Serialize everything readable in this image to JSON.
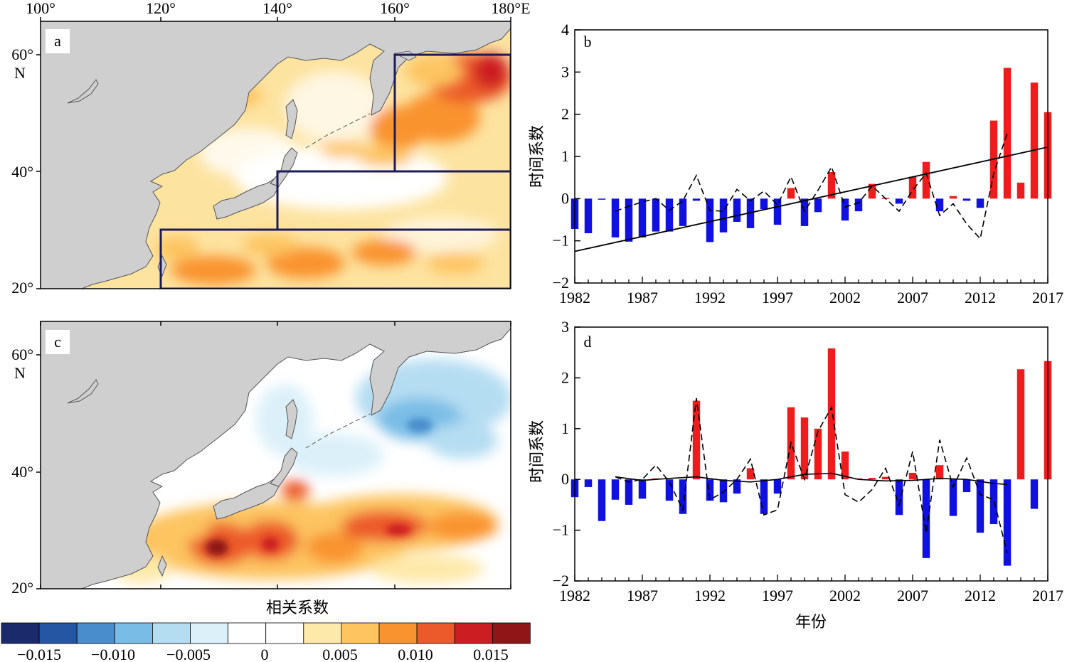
{
  "figure": {
    "colorbar_title": "相关系数",
    "colorbar_tick_labels": [
      "−0.015",
      "−0.010",
      "−0.005",
      "0",
      "0.005",
      "0.010",
      "0.015"
    ],
    "colorbar_colors": [
      "#1b2a6a",
      "#2456a4",
      "#4a8dcd",
      "#79bde6",
      "#b5ddf2",
      "#dcf0f9",
      "#ffffff",
      "#ffffff",
      "#fde9a9",
      "#fdc460",
      "#f9932f",
      "#ec5a2b",
      "#cc1d22",
      "#8f1517"
    ]
  },
  "maps": [
    {
      "panel": "a",
      "lon_labels": [
        "100°",
        "120°",
        "140°",
        "160°",
        "180°E"
      ],
      "lat_labels": [
        "60°",
        "N",
        "40°",
        "20°"
      ],
      "land_color": "#cfcfcf",
      "boxes": [
        "160°E–180°, 40°–60°N",
        "140°E–180°, 30°–40°N",
        "120°E–180°, 20°–30°N"
      ],
      "pattern": "positive"
    },
    {
      "panel": "c",
      "lon_labels": [],
      "lat_labels": [
        "60°",
        "N",
        "40°",
        "20°"
      ],
      "land_color": "#cfcfcf",
      "pattern": "mixed"
    }
  ],
  "chart_data": [
    {
      "type": "bar",
      "panel": "b",
      "ylabel": "时间系数",
      "xlabel": "",
      "ylim": [
        -2,
        4
      ],
      "yticks": [
        "4",
        "3",
        "2",
        "1",
        "0",
        "−1",
        "−2"
      ],
      "xticks": [
        "1982",
        "1987",
        "1992",
        "1997",
        "2002",
        "2007",
        "2012",
        "2017"
      ],
      "x": [
        1982,
        1983,
        1984,
        1985,
        1986,
        1987,
        1988,
        1989,
        1990,
        1991,
        1992,
        1993,
        1994,
        1995,
        1996,
        1997,
        1998,
        1999,
        2000,
        2001,
        2002,
        2003,
        2004,
        2005,
        2006,
        2007,
        2008,
        2009,
        2010,
        2011,
        2012,
        2013,
        2014,
        2015,
        2016,
        2017
      ],
      "values": [
        -0.72,
        -0.82,
        -0.02,
        -0.92,
        -1.02,
        -0.92,
        -0.78,
        -0.78,
        -0.65,
        -0.05,
        -1.03,
        -0.8,
        -0.55,
        -0.7,
        -0.25,
        -0.62,
        0.25,
        -0.65,
        -0.32,
        0.63,
        -0.52,
        -0.3,
        0.35,
        0.02,
        -0.12,
        0.52,
        0.87,
        -0.3,
        0.06,
        -0.05,
        -0.22,
        1.85,
        3.1,
        0.38,
        2.75,
        2.05
      ],
      "positive_color": "#ee1c1c",
      "negative_color": "#1010e0",
      "dashed_line": {
        "x": [
          1985,
          1986,
          1987,
          1988,
          1989,
          1990,
          1991,
          1992,
          1993,
          1994,
          1995,
          1996,
          1997,
          1998,
          1999,
          2000,
          2001,
          2002,
          2003,
          2004,
          2005,
          2006,
          2007,
          2008,
          2009,
          2010,
          2011,
          2012,
          2013,
          2014
        ],
        "y": [
          -0.3,
          -0.18,
          -0.08,
          0.0,
          -0.28,
          -0.05,
          0.55,
          -0.28,
          -0.3,
          0.22,
          -0.05,
          0.18,
          -0.15,
          0.52,
          -0.3,
          0.2,
          0.75,
          -0.2,
          -0.1,
          0.3,
          0.0,
          -0.3,
          0.2,
          0.6,
          -0.4,
          -0.12,
          -0.6,
          -0.95,
          0.6,
          1.55
        ]
      },
      "trend_line": {
        "x": [
          1982,
          2017
        ],
        "y": [
          -1.25,
          1.22
        ]
      }
    },
    {
      "type": "bar",
      "panel": "d",
      "ylabel": "时间系数",
      "xlabel": "年份",
      "ylim": [
        -2,
        3
      ],
      "yticks": [
        "3",
        "2",
        "1",
        "0",
        "−1",
        "−2"
      ],
      "xticks": [
        "1982",
        "1987",
        "1992",
        "1997",
        "2002",
        "2007",
        "2012",
        "2017"
      ],
      "x": [
        1982,
        1983,
        1984,
        1985,
        1986,
        1987,
        1988,
        1989,
        1990,
        1991,
        1992,
        1993,
        1994,
        1995,
        1996,
        1997,
        1998,
        1999,
        2000,
        2001,
        2002,
        2003,
        2004,
        2005,
        2006,
        2007,
        2008,
        2009,
        2010,
        2011,
        2012,
        2013,
        2014,
        2015,
        2016,
        2017
      ],
      "values": [
        -0.35,
        -0.15,
        -0.82,
        -0.4,
        -0.5,
        -0.38,
        0.02,
        -0.42,
        -0.68,
        1.55,
        -0.42,
        -0.45,
        -0.28,
        0.22,
        -0.68,
        -0.28,
        1.42,
        1.22,
        1.0,
        2.58,
        0.55,
        0.02,
        0.03,
        0.05,
        -0.7,
        0.13,
        -1.55,
        0.28,
        -0.72,
        -0.25,
        -1.05,
        -0.88,
        -1.7,
        2.17,
        -0.58,
        2.33
      ],
      "positive_color": "#ee1c1c",
      "negative_color": "#1010e0",
      "dashed_line": {
        "x": [
          1985,
          1986,
          1987,
          1988,
          1989,
          1990,
          1991,
          1992,
          1993,
          1994,
          1995,
          1996,
          1997,
          1998,
          1999,
          2000,
          2001,
          2002,
          2003,
          2004,
          2005,
          2006,
          2007,
          2008,
          2009,
          2010,
          2011,
          2012,
          2013,
          2014
        ],
        "y": [
          0.05,
          -0.05,
          0.0,
          0.28,
          -0.05,
          -0.6,
          1.6,
          -0.4,
          -0.25,
          0.0,
          0.4,
          -0.7,
          -0.6,
          0.72,
          0.0,
          0.95,
          1.42,
          -0.3,
          -0.45,
          -0.2,
          0.22,
          -0.5,
          0.55,
          -1.05,
          0.78,
          -0.15,
          0.42,
          -0.3,
          -0.4,
          -1.45
        ]
      },
      "smooth_line": {
        "x": [
          1985,
          1987,
          1989,
          1991,
          1993,
          1995,
          1997,
          1999,
          2001,
          2003,
          2005,
          2007,
          2009,
          2011,
          2013,
          2014
        ],
        "y": [
          0.05,
          -0.02,
          0.02,
          0.05,
          -0.02,
          -0.05,
          0.0,
          0.1,
          0.12,
          0.0,
          -0.03,
          -0.02,
          0.02,
          0.0,
          -0.08,
          -0.1
        ]
      }
    }
  ]
}
